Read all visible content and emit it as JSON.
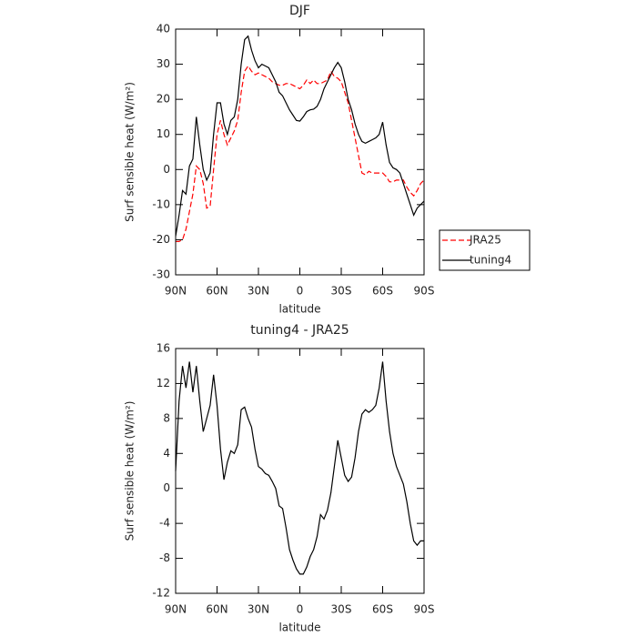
{
  "chart_data": [
    {
      "type": "line",
      "title": "DJF",
      "xlabel": "latitude",
      "ylabel": "Surf sensible heat (W/m²)",
      "x": [
        90,
        87.5,
        85,
        82.5,
        80,
        77.5,
        75,
        72.5,
        70,
        67.5,
        65,
        62.5,
        60,
        57.5,
        55,
        52.5,
        50,
        47.5,
        45,
        42.5,
        40,
        37.5,
        35,
        32.5,
        30,
        27.5,
        25,
        22.5,
        20,
        17.5,
        15,
        12.5,
        10,
        7.5,
        5,
        2.5,
        0,
        -2.5,
        -5,
        -7.5,
        -10,
        -12.5,
        -15,
        -17.5,
        -20,
        -22.5,
        -25,
        -27.5,
        -30,
        -32.5,
        -35,
        -37.5,
        -40,
        -42.5,
        -45,
        -47.5,
        -50,
        -52.5,
        -55,
        -57.5,
        -60,
        -62.5,
        -65,
        -67.5,
        -70,
        -72.5,
        -75,
        -77.5,
        -80,
        -82.5,
        -85,
        -87.5,
        -90
      ],
      "series": [
        {
          "name": "JRA25",
          "color": "#ff0000",
          "linestyle": "dashed",
          "values": [
            -20.5,
            -20.5,
            -20,
            -17,
            -12,
            -7,
            1,
            0,
            -4,
            -11,
            -10.5,
            0,
            10,
            14,
            10,
            7,
            9,
            11,
            14,
            22,
            28,
            29.5,
            28,
            27,
            27.5,
            27,
            26.5,
            26,
            25,
            24.5,
            24,
            24,
            24.5,
            24.5,
            24,
            23.5,
            23,
            24,
            25.5,
            24.5,
            25.5,
            24.5,
            24.5,
            25,
            25.5,
            28,
            26.5,
            26,
            25,
            22,
            19,
            14,
            9,
            4,
            -1,
            -1.5,
            -0.5,
            -1,
            -1,
            -1,
            -1,
            -2,
            -3.5,
            -3.5,
            -3,
            -3,
            -3,
            -5,
            -6.5,
            -7.5,
            -6,
            -4,
            -3
          ]
        },
        {
          "name": "tuning4",
          "color": "#000000",
          "linestyle": "solid",
          "values": [
            -19,
            -13,
            -6,
            -7,
            1,
            3,
            15,
            7,
            0,
            -3,
            -1,
            10,
            19,
            19,
            13,
            10,
            14,
            15,
            20,
            30,
            37,
            38,
            34,
            31,
            29,
            30,
            29.5,
            29,
            27,
            25,
            22,
            21,
            19,
            17,
            15.5,
            14,
            13.8,
            15,
            16.5,
            17,
            17.2,
            18,
            20,
            23,
            25,
            27,
            29,
            30.5,
            29,
            25,
            20,
            17,
            13,
            10,
            8,
            7.5,
            8,
            8.5,
            9,
            10,
            13.5,
            7,
            2,
            0.5,
            0,
            -1,
            -4,
            -7,
            -10,
            -13,
            -11,
            -10,
            -9
          ]
        }
      ],
      "xlim": [
        90,
        -90
      ],
      "xticks": [
        {
          "value": 90,
          "label": "90N"
        },
        {
          "value": 60,
          "label": "60N"
        },
        {
          "value": 30,
          "label": "30N"
        },
        0,
        {
          "value": -30,
          "label": "30S"
        },
        {
          "value": -60,
          "label": "60S"
        },
        {
          "value": -90,
          "label": "90S"
        }
      ],
      "ylim": [
        -30,
        40
      ],
      "yticks": [
        -30,
        -20,
        -10,
        0,
        10,
        20,
        30,
        40
      ],
      "legend": "right"
    },
    {
      "type": "line",
      "title": "tuning4 - JRA25",
      "xlabel": "latitude",
      "ylabel": "Surf sensible heat (W/m²)",
      "x": [
        90,
        87.5,
        85,
        82.5,
        80,
        77.5,
        75,
        72.5,
        70,
        67.5,
        65,
        62.5,
        60,
        57.5,
        55,
        52.5,
        50,
        47.5,
        45,
        42.5,
        40,
        37.5,
        35,
        32.5,
        30,
        27.5,
        25,
        22.5,
        20,
        17.5,
        15,
        12.5,
        10,
        7.5,
        5,
        2.5,
        0,
        -2.5,
        -5,
        -7.5,
        -10,
        -12.5,
        -15,
        -17.5,
        -20,
        -22.5,
        -25,
        -27.5,
        -30,
        -32.5,
        -35,
        -37.5,
        -40,
        -42.5,
        -45,
        -47.5,
        -50,
        -52.5,
        -55,
        -57.5,
        -60,
        -62.5,
        -65,
        -67.5,
        -70,
        -72.5,
        -75,
        -77.5,
        -80,
        -82.5,
        -85,
        -87.5,
        -90
      ],
      "series": [
        {
          "color": "#000000",
          "linestyle": "solid",
          "values": [
            2,
            10,
            14,
            11.5,
            14.5,
            11,
            14,
            10,
            6.5,
            8,
            9.5,
            13,
            9.5,
            4.5,
            1,
            3,
            4.3,
            4,
            5,
            9,
            9.3,
            8,
            7,
            4.5,
            2.5,
            2.2,
            1.7,
            1.5,
            0.8,
            0,
            -2,
            -2.3,
            -4.5,
            -7,
            -8.2,
            -9.2,
            -9.8,
            -9.8,
            -9,
            -7.8,
            -7,
            -5.5,
            -3,
            -3.5,
            -2.5,
            -0.5,
            2.5,
            5.5,
            3.5,
            1.5,
            0.8,
            1.3,
            3.5,
            6.5,
            8.5,
            9,
            8.7,
            9,
            9.5,
            11.5,
            14.5,
            10,
            6.5,
            4,
            2.5,
            1.5,
            0.5,
            -1.5,
            -4,
            -6,
            -6.5,
            -6,
            -6
          ]
        }
      ],
      "xlim": [
        90,
        -90
      ],
      "xticks": [
        {
          "value": 90,
          "label": "90N"
        },
        {
          "value": 60,
          "label": "60N"
        },
        {
          "value": 30,
          "label": "30N"
        },
        0,
        {
          "value": -30,
          "label": "30S"
        },
        {
          "value": -60,
          "label": "60S"
        },
        {
          "value": -90,
          "label": "90S"
        }
      ],
      "ylim": [
        -12,
        16
      ],
      "yticks": [
        -12,
        -8,
        -4,
        0,
        4,
        8,
        12,
        16
      ]
    }
  ]
}
